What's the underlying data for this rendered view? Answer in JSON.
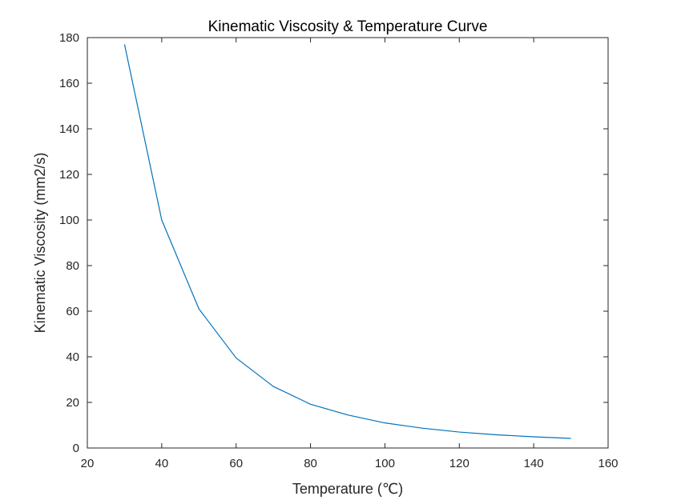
{
  "chart_data": {
    "type": "line",
    "title": "Kinematic Viscosity & Temperature Curve",
    "xlabel": "Temperature (℃)",
    "ylabel": "Kinematic Viscosity (mm2/s)",
    "xlim": [
      20,
      160
    ],
    "ylim": [
      0,
      180
    ],
    "xticks": [
      20,
      40,
      60,
      80,
      100,
      120,
      140,
      160
    ],
    "yticks": [
      0,
      20,
      40,
      60,
      80,
      100,
      120,
      140,
      160,
      180
    ],
    "grid": false,
    "legend": "none",
    "series_color": "#0072BD",
    "series": [
      {
        "x": [
          30,
          40,
          50,
          60,
          70,
          80,
          90,
          100,
          110,
          120,
          130,
          140,
          150
        ],
        "y": [
          177,
          100,
          61,
          39.5,
          27,
          19.2,
          14.5,
          11,
          8.7,
          7,
          5.8,
          4.9,
          4.2
        ]
      }
    ]
  }
}
